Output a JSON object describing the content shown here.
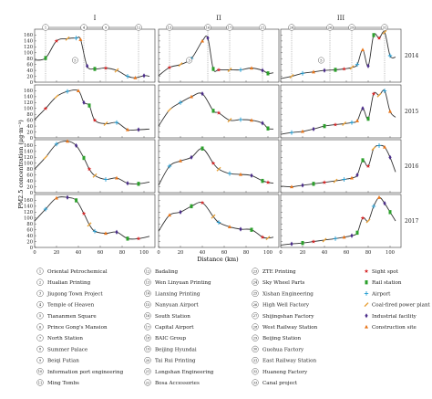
{
  "chart_data": {
    "type": "line",
    "ylabel": "PM2.5 concentration (μg·m⁻³)",
    "xlabel": "Distance (km)",
    "x_ticks": [
      "0",
      "20",
      "40",
      "60",
      "80",
      "100"
    ],
    "y_ticks": [
      "0",
      "20",
      "40",
      "60",
      "80",
      "100",
      "120",
      "140",
      "160"
    ],
    "xlim": [
      0,
      110
    ],
    "ylim": [
      0,
      180
    ],
    "routes": [
      "I",
      "II",
      "III"
    ],
    "years": [
      "2014",
      "2015",
      "2016",
      "2017"
    ],
    "route_markers": [
      [
        "1",
        "4",
        "9",
        "12"
      ],
      [
        "13",
        "16",
        "17",
        "21"
      ],
      [
        "24",
        "26",
        "29",
        "31"
      ]
    ],
    "sub_markers": [
      "5",
      "3",
      "5"
    ],
    "panels": [
      [
        {
          "x": [
            0,
            10,
            20,
            30,
            38,
            42,
            48,
            55,
            65,
            75,
            85,
            92,
            100,
            105
          ],
          "y": [
            75,
            82,
            140,
            148,
            150,
            145,
            55,
            45,
            48,
            40,
            20,
            15,
            22,
            20
          ]
        },
        {
          "x": [
            0,
            10,
            20,
            30,
            40,
            45,
            50,
            55,
            65,
            75,
            85,
            95,
            105
          ],
          "y": [
            62,
            100,
            140,
            158,
            160,
            120,
            110,
            60,
            48,
            52,
            28,
            28,
            30
          ]
        },
        {
          "x": [
            0,
            10,
            20,
            30,
            38,
            45,
            50,
            55,
            65,
            75,
            85,
            95,
            105
          ],
          "y": [
            80,
            120,
            165,
            175,
            160,
            118,
            80,
            58,
            45,
            50,
            32,
            30,
            36
          ]
        },
        {
          "x": [
            0,
            10,
            20,
            30,
            38,
            45,
            50,
            55,
            65,
            75,
            85,
            95,
            105
          ],
          "y": [
            90,
            130,
            168,
            170,
            160,
            115,
            78,
            55,
            48,
            52,
            30,
            30,
            38
          ]
        }
      ],
      [
        {
          "x": [
            0,
            10,
            20,
            30,
            40,
            45,
            50,
            55,
            65,
            75,
            85,
            95,
            100,
            105
          ],
          "y": [
            22,
            50,
            60,
            80,
            140,
            150,
            45,
            42,
            42,
            42,
            48,
            40,
            30,
            32
          ]
        },
        {
          "x": [
            0,
            10,
            20,
            30,
            40,
            50,
            55,
            65,
            75,
            85,
            95,
            100,
            105
          ],
          "y": [
            40,
            95,
            120,
            140,
            150,
            92,
            85,
            60,
            62,
            60,
            50,
            32,
            30
          ]
        },
        {
          "x": [
            0,
            10,
            20,
            30,
            40,
            50,
            55,
            65,
            75,
            85,
            95,
            100,
            105
          ],
          "y": [
            25,
            90,
            108,
            120,
            150,
            100,
            80,
            65,
            62,
            58,
            40,
            35,
            32
          ]
        },
        {
          "x": [
            0,
            10,
            20,
            30,
            40,
            50,
            55,
            65,
            75,
            85,
            95,
            100,
            105
          ],
          "y": [
            55,
            110,
            120,
            140,
            152,
            105,
            85,
            70,
            62,
            60,
            35,
            32,
            35
          ]
        }
      ],
      [
        {
          "x": [
            0,
            10,
            20,
            30,
            40,
            50,
            58,
            65,
            70,
            75,
            80,
            85,
            90,
            95,
            100,
            105
          ],
          "y": [
            12,
            20,
            30,
            35,
            40,
            42,
            45,
            50,
            60,
            110,
            55,
            160,
            150,
            170,
            90,
            85
          ]
        },
        {
          "x": [
            0,
            10,
            20,
            30,
            40,
            50,
            58,
            65,
            70,
            75,
            80,
            85,
            90,
            95,
            100,
            105
          ],
          "y": [
            12,
            18,
            22,
            30,
            40,
            45,
            48,
            52,
            58,
            100,
            65,
            150,
            145,
            160,
            90,
            70
          ]
        },
        {
          "x": [
            0,
            10,
            20,
            30,
            40,
            50,
            58,
            65,
            70,
            75,
            80,
            85,
            90,
            95,
            100,
            105
          ],
          "y": [
            22,
            20,
            25,
            30,
            35,
            40,
            45,
            50,
            60,
            110,
            90,
            150,
            160,
            155,
            120,
            70
          ]
        },
        {
          "x": [
            0,
            10,
            20,
            30,
            40,
            50,
            58,
            65,
            70,
            75,
            80,
            85,
            90,
            95,
            100,
            105
          ],
          "y": [
            8,
            12,
            15,
            20,
            25,
            30,
            35,
            40,
            50,
            100,
            90,
            140,
            170,
            150,
            120,
            90
          ]
        }
      ]
    ]
  },
  "legend_sites": [
    {
      "num": "1",
      "label": "Oriental Petrochemical"
    },
    {
      "num": "2",
      "label": "Hualian Printing"
    },
    {
      "num": "3",
      "label": "Jiugong Town Project"
    },
    {
      "num": "4",
      "label": "Temple of Heaven"
    },
    {
      "num": "5",
      "label": "Tiananmen Square"
    },
    {
      "num": "6",
      "label": "Prince Gong's Mansion"
    },
    {
      "num": "7",
      "label": "North Station"
    },
    {
      "num": "8",
      "label": "Summer Palace"
    },
    {
      "num": "9",
      "label": "Beiqi Futian"
    },
    {
      "num": "10",
      "label": "Information port engineering"
    },
    {
      "num": "11",
      "label": "Ming Tombs"
    },
    {
      "num": "12",
      "label": "Badaling"
    },
    {
      "num": "13",
      "label": "Wen Linyuan Printing"
    },
    {
      "num": "14",
      "label": "Lianxing Printing"
    },
    {
      "num": "15",
      "label": "Nanyuan Airport"
    },
    {
      "num": "16",
      "label": "South Station"
    },
    {
      "num": "17",
      "label": "Capital Airport"
    },
    {
      "num": "18",
      "label": "BAIC Group"
    },
    {
      "num": "19",
      "label": "Beijing Hyundai"
    },
    {
      "num": "20",
      "label": "Tai Rui Printing"
    },
    {
      "num": "21",
      "label": "Longshan Engineering"
    },
    {
      "num": "22",
      "label": "Bosa Accessories"
    },
    {
      "num": "23",
      "label": "ZTE Printing"
    },
    {
      "num": "24",
      "label": "Sky Wheel Parts"
    },
    {
      "num": "25",
      "label": "Xishan Engineering"
    },
    {
      "num": "26",
      "label": "High Well Factory"
    },
    {
      "num": "27",
      "label": "Shijingshan Factory"
    },
    {
      "num": "28",
      "label": "West Railway Station"
    },
    {
      "num": "29",
      "label": "Beijing Station"
    },
    {
      "num": "30",
      "label": "Guohua Factory"
    },
    {
      "num": "31",
      "label": "East Railway Station"
    },
    {
      "num": "32",
      "label": "Huaneng Factory"
    },
    {
      "num": "33",
      "label": "Canal project"
    }
  ],
  "legend_symbols": [
    {
      "icon": "star-icon",
      "label": "Sight spot",
      "color": "#d62728"
    },
    {
      "icon": "rail-icon",
      "label": "Rail station",
      "color": "#2ca02c"
    },
    {
      "icon": "airport-icon",
      "label": "Airport",
      "color": "#1f9bd1"
    },
    {
      "icon": "power-plant-icon",
      "label": "Coal-fired power plant",
      "color": "#e8a33c"
    },
    {
      "icon": "industrial-icon",
      "label": "Industrial facility",
      "color": "#4b2d8a"
    },
    {
      "icon": "construction-icon",
      "label": "Construction site",
      "color": "#e8751a"
    }
  ]
}
